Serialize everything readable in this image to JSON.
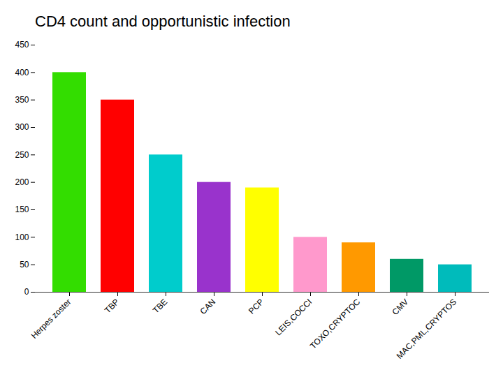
{
  "chart_data": {
    "type": "bar",
    "title": "CD4 count and opportunistic infection",
    "categories": [
      "Herpes zoster",
      "TBP",
      "TBE",
      "CAN",
      "PCP",
      "LEIS,COCCI",
      "TOXO,CRYPTOC",
      "CMV",
      "MAC,PML,CRYPTOS"
    ],
    "values": [
      400,
      350,
      250,
      200,
      190,
      100,
      90,
      60,
      50
    ],
    "colors": [
      "#33dd00",
      "#ff0000",
      "#00cccc",
      "#9933cc",
      "#ffff00",
      "#ff99cc",
      "#ff9900",
      "#009966",
      "#00bbbb"
    ],
    "ylim": [
      0,
      450
    ],
    "yticks": [
      0,
      50,
      100,
      150,
      200,
      250,
      300,
      350,
      400,
      450
    ],
    "grid": false
  }
}
